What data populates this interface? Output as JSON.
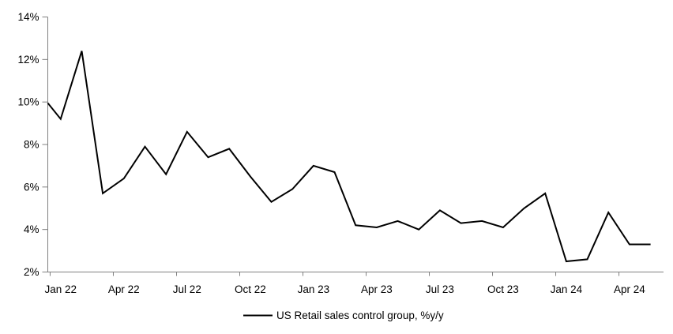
{
  "chart_data": {
    "type": "line",
    "title": "",
    "legend": "US Retail sales control group, %y/y",
    "legend_position": "bottom-center",
    "grid": false,
    "series_color": "#000000",
    "axis_color": "#808080",
    "ylim": [
      2,
      14
    ],
    "y_tick_step": 2,
    "y_tick_labels": [
      "2%",
      "4%",
      "6%",
      "8%",
      "10%",
      "12%",
      "14%"
    ],
    "x_tick_labels": [
      "Jan 22",
      "Apr 22",
      "Jul 22",
      "Oct 22",
      "Jan 23",
      "Apr 23",
      "Jul 23",
      "Oct 23",
      "Jan 24",
      "Apr 24"
    ],
    "x_tick_month_indices": [
      0,
      3,
      6,
      9,
      12,
      15,
      18,
      21,
      24,
      27
    ],
    "x": [
      "Jan 22",
      "Feb 22",
      "Mar 22",
      "Apr 22",
      "May 22",
      "Jun 22",
      "Jul 22",
      "Aug 22",
      "Sep 22",
      "Oct 22",
      "Nov 22",
      "Dec 22",
      "Jan 23",
      "Feb 23",
      "Mar 23",
      "Apr 23",
      "May 23",
      "Jun 23",
      "Jul 23",
      "Aug 23",
      "Sep 23",
      "Oct 23",
      "Nov 23",
      "Dec 23",
      "Jan 24",
      "Feb 24",
      "Mar 24",
      "Apr 24",
      "May 24"
    ],
    "values": [
      9.2,
      12.4,
      5.7,
      6.4,
      7.9,
      6.6,
      8.6,
      7.4,
      7.8,
      6.5,
      5.3,
      5.9,
      7.0,
      6.7,
      4.2,
      4.1,
      4.4,
      4.0,
      4.9,
      4.3,
      4.4,
      4.1,
      5.0,
      5.7,
      2.5,
      2.6,
      4.8,
      3.3,
      3.3
    ],
    "clipped_lead_in_pct_at_left_axis": 9.95
  }
}
